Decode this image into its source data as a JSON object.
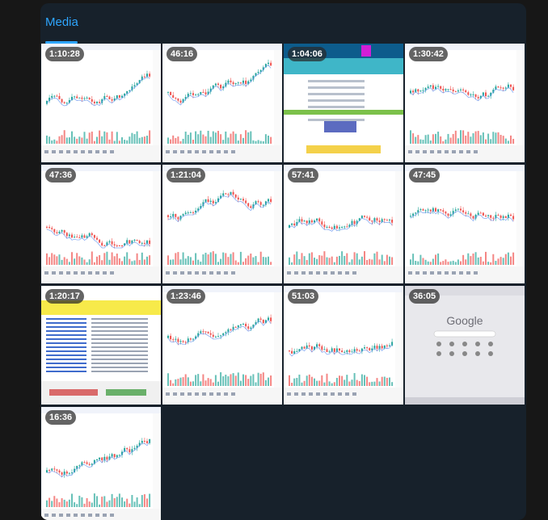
{
  "media": {
    "title": "Media",
    "videos": [
      {
        "duration": "1:10:28",
        "kind": "chart"
      },
      {
        "duration": "46:16",
        "kind": "chart"
      },
      {
        "duration": "1:04:06",
        "kind": "webpage"
      },
      {
        "duration": "1:30:42",
        "kind": "chart"
      },
      {
        "duration": "47:36",
        "kind": "chart"
      },
      {
        "duration": "1:21:04",
        "kind": "chart"
      },
      {
        "duration": "57:41",
        "kind": "chart"
      },
      {
        "duration": "47:45",
        "kind": "chart"
      },
      {
        "duration": "1:20:17",
        "kind": "spreadsheet"
      },
      {
        "duration": "1:23:46",
        "kind": "chart"
      },
      {
        "duration": "51:03",
        "kind": "chart"
      },
      {
        "duration": "36:05",
        "kind": "browser"
      },
      {
        "duration": "16:36",
        "kind": "chart"
      }
    ]
  },
  "colors": {
    "accent": "#2ea6ff",
    "panel": "#17212b",
    "up": "#26a69a",
    "down": "#ef5350"
  },
  "browser": {
    "logo": "Google"
  }
}
